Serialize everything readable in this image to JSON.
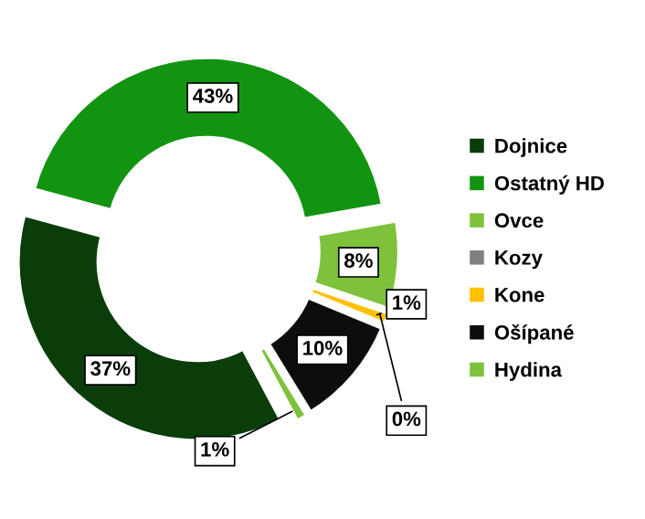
{
  "chart_data": {
    "type": "donut",
    "categories": [
      "Dojnice",
      "Ostatný HD",
      "Ovce",
      "Kozy",
      "Kone",
      "Ošípané",
      "Hydina"
    ],
    "values": [
      37,
      43,
      8,
      0,
      1,
      10,
      1
    ],
    "colors": [
      "#0a3d0a",
      "#129412",
      "#7ec23c",
      "#808080",
      "#ffc000",
      "#0d0d0d",
      "#7ec23c"
    ],
    "value_labels": [
      "37%",
      "43%",
      "8%",
      "0%",
      "1%",
      "10%",
      "1%"
    ],
    "legend": "right"
  }
}
